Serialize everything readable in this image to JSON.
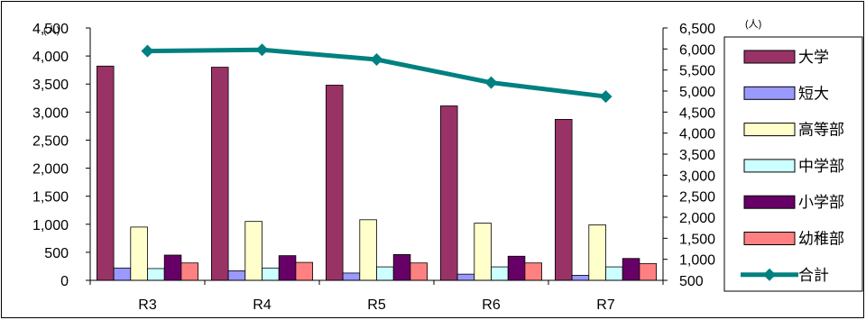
{
  "chart_data": {
    "type": "bar",
    "categories": [
      "R3",
      "R4",
      "R5",
      "R6",
      "R7"
    ],
    "left_axis": {
      "unit": "(人)",
      "ylim": [
        0,
        4500
      ],
      "ticks": [
        "0",
        "500",
        "1,000",
        "1,500",
        "2,000",
        "2,500",
        "3,000",
        "3,500",
        "4,000",
        "4,500"
      ]
    },
    "right_axis": {
      "unit": "(人)",
      "ylim": [
        500,
        6500
      ],
      "ticks": [
        "500",
        "1,000",
        "1,500",
        "2,000",
        "2,500",
        "3,000",
        "3,500",
        "4,000",
        "4,500",
        "5,000",
        "5,500",
        "6,000",
        "6,500"
      ]
    },
    "series": [
      {
        "name": "大学",
        "type": "bar",
        "axis": "left",
        "color": "#993366",
        "values": [
          3820,
          3800,
          3480,
          3110,
          2870
        ]
      },
      {
        "name": "短大",
        "type": "bar",
        "axis": "left",
        "color": "#9999ff",
        "values": [
          220,
          170,
          130,
          110,
          90
        ]
      },
      {
        "name": "高等部",
        "type": "bar",
        "axis": "left",
        "color": "#ffffcc",
        "values": [
          950,
          1050,
          1080,
          1020,
          990
        ]
      },
      {
        "name": "中学部",
        "type": "bar",
        "axis": "left",
        "color": "#ccffff",
        "values": [
          210,
          220,
          240,
          240,
          240
        ]
      },
      {
        "name": "小学部",
        "type": "bar",
        "axis": "left",
        "color": "#660066",
        "values": [
          450,
          440,
          460,
          430,
          390
        ]
      },
      {
        "name": "幼稚部",
        "type": "bar",
        "axis": "left",
        "color": "#ff8080",
        "values": [
          310,
          320,
          310,
          310,
          300
        ]
      },
      {
        "name": "合計",
        "type": "line",
        "axis": "right",
        "color": "#008080",
        "values": [
          5950,
          5980,
          5750,
          5200,
          4870
        ]
      }
    ],
    "legend_position": "right",
    "grid": false
  }
}
